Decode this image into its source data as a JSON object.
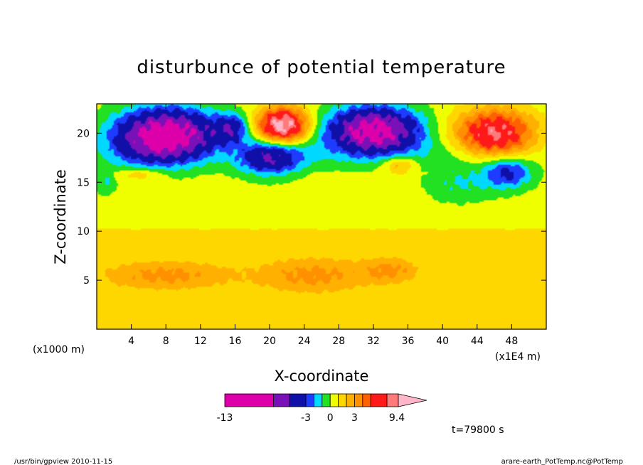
{
  "chart_data": {
    "type": "heatmap",
    "title": "disturbunce of potential temperature",
    "xlabel": "X-coordinate",
    "ylabel": "Z-coordinate",
    "x_unit_left": "(x1000 m)",
    "x_unit_right": "(x1E4 m)",
    "xlim": [
      0,
      52
    ],
    "ylim": [
      0,
      23
    ],
    "x_ticks": [
      "4",
      "8",
      "12",
      "16",
      "20",
      "24",
      "28",
      "32",
      "36",
      "40",
      "44",
      "48"
    ],
    "y_ticks": [
      "5",
      "10",
      "15",
      "20"
    ],
    "colorbar": {
      "labels": [
        "-13",
        "-3",
        "0",
        "3",
        "9.4"
      ],
      "range": [
        -13,
        9.4
      ],
      "colors": [
        "#dd00aa",
        "#7a10b8",
        "#1010a8",
        "#1e3cff",
        "#00d8ff",
        "#22e022",
        "#f0ff00",
        "#ffd700",
        "#ffb000",
        "#ff9000",
        "#ff6000",
        "#ff1a1a",
        "#ff7a7a",
        "#ffb6c8"
      ]
    },
    "time_label": "t=79800 s",
    "blobs": [
      {
        "cx": 8,
        "cz": 19.8,
        "rx": 7,
        "rz": 3.2,
        "peak": -10
      },
      {
        "cx": 32,
        "cz": 20.2,
        "rx": 6.5,
        "rz": 3,
        "peak": -9
      },
      {
        "cx": 20,
        "cz": 17.5,
        "rx": 4.5,
        "rz": 2.2,
        "peak": -5
      },
      {
        "cx": 15.5,
        "cz": 20.5,
        "rx": 2.5,
        "rz": 1.8,
        "peak": -4
      },
      {
        "cx": 47.5,
        "cz": 16,
        "rx": 3.5,
        "rz": 2,
        "peak": -4
      },
      {
        "cx": 21.5,
        "cz": 20.8,
        "rx": 3.5,
        "rz": 2.2,
        "peak": 9
      },
      {
        "cx": 46,
        "cz": 20,
        "rx": 5.5,
        "rz": 3,
        "peak": 7
      },
      {
        "cx": 35,
        "cz": 16.8,
        "rx": 2.5,
        "rz": 1.2,
        "peak": 2.5
      },
      {
        "cx": 5,
        "cz": 15.8,
        "rx": 3,
        "rz": 0.8,
        "peak": 1.5
      },
      {
        "cx": 42,
        "cz": 15,
        "rx": 5,
        "rz": 2.5,
        "peak": -1.5
      },
      {
        "cx": 1,
        "cz": 15,
        "rx": 1.5,
        "rz": 1.5,
        "peak": -1.5
      },
      {
        "cx": 8,
        "cz": 5.5,
        "rx": 9,
        "rz": 1.8,
        "peak": 2.2
      },
      {
        "cx": 25,
        "cz": 5.5,
        "rx": 8,
        "rz": 2.2,
        "peak": 2.2
      },
      {
        "cx": 34,
        "cz": 6,
        "rx": 4,
        "rz": 1.6,
        "peak": 2
      }
    ],
    "base_field": [
      {
        "z_below": 10.3,
        "value": 1.2
      },
      {
        "z_below": 23,
        "value": 0.4
      }
    ]
  },
  "footer": {
    "left": "/usr/bin/gpview   2010-11-15",
    "right": "arare-earth_PotTemp.nc@PotTemp"
  }
}
